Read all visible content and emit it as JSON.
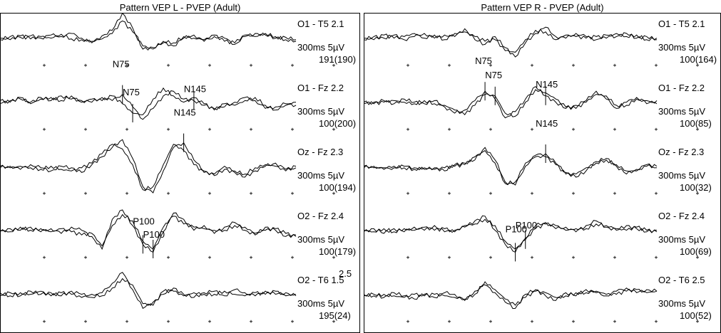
{
  "colors": {
    "trace": "#000000",
    "background": "#ffffff",
    "frame": "#000000"
  },
  "chart_data": [
    {
      "type": "line",
      "title": "Pattern VEP L  - PVEP (Adult)",
      "x_unit": "ms",
      "xlim": [
        0,
        300
      ],
      "grid": "dotted cross markers every 50 ms",
      "channels": [
        {
          "label": "O1 - T5",
          "trial_numbers": [
            "2.1"
          ],
          "scale": "300ms 5µV",
          "sweeps": "191(190)",
          "series": [
            {
              "name": "",
              "values": [
                0.0,
                0.4,
                0.3,
                0.5,
                0.2,
                0.6,
                0.4,
                0.8,
                0.2,
                -0.4,
                0.5,
                1.2,
                3.4,
                1.5,
                -1.2,
                -1.0,
                -0.4,
                -0.8,
                0.2,
                0.6,
                -0.2,
                0.4,
                0.2,
                -0.6,
                0.4,
                0.8,
                0.6,
                0.2,
                0.3,
                0.0
              ]
            },
            {
              "name": "",
              "values": [
                0.2,
                0.0,
                0.5,
                0.1,
                0.4,
                0.2,
                0.7,
                0.1,
                0.0,
                -0.2,
                0.1,
                0.8,
                2.4,
                1.0,
                -0.8,
                -1.2,
                -0.2,
                -0.4,
                0.4,
                0.2,
                0.0,
                0.6,
                -0.2,
                -0.4,
                0.6,
                0.4,
                0.8,
                0.4,
                0.0,
                -0.2
              ]
            }
          ],
          "markers": []
        },
        {
          "label": "O1 - Fz",
          "trial_numbers": [
            "2.2"
          ],
          "scale": "300ms 5µV",
          "sweeps": "100(200)",
          "series": [
            {
              "name": "",
              "values": [
                0.0,
                0.4,
                0.6,
                0.2,
                0.8,
                0.4,
                1.0,
                0.6,
                0.4,
                0.2,
                0.8,
                0.4,
                1.2,
                -0.4,
                -2.0,
                -0.6,
                1.0,
                1.6,
                0.6,
                0.4,
                -0.2,
                -0.6,
                -0.4,
                0.2,
                0.8,
                0.4,
                -0.6,
                -0.4,
                0.0,
                -0.2
              ]
            },
            {
              "name": "",
              "values": [
                0.4,
                0.2,
                0.8,
                0.0,
                0.6,
                0.8,
                0.4,
                1.0,
                0.2,
                0.6,
                0.4,
                1.0,
                0.0,
                -1.2,
                -1.4,
                0.6,
                2.0,
                1.0,
                0.2,
                0.8,
                0.0,
                -0.8,
                0.0,
                -0.2,
                0.4,
                0.8,
                -0.2,
                -0.8,
                -0.2,
                0.2
              ]
            }
          ],
          "markers": [
            {
              "label": "N75",
              "index": 12
            },
            {
              "label": "N75",
              "index": 13
            },
            {
              "label": "N145",
              "index": 19
            }
          ]
        },
        {
          "label": "Oz - Fz",
          "trial_numbers": [
            "2.3"
          ],
          "scale": "300ms 5µV",
          "sweeps": "100(194)",
          "series": [
            {
              "name": "",
              "values": [
                0.0,
                0.2,
                -0.2,
                0.4,
                0.0,
                -0.4,
                0.2,
                0.0,
                -0.6,
                0.4,
                1.4,
                2.6,
                3.6,
                1.2,
                -2.4,
                -3.2,
                -0.4,
                2.6,
                3.2,
                1.0,
                -0.4,
                -1.0,
                -0.2,
                -0.6,
                -1.2,
                -0.4,
                0.2,
                0.6,
                -0.2,
                0.0
              ]
            },
            {
              "name": "",
              "values": [
                0.2,
                0.0,
                0.2,
                0.0,
                -0.2,
                0.2,
                -0.2,
                -0.4,
                0.0,
                0.6,
                1.8,
                3.0,
                2.4,
                0.4,
                -2.8,
                -2.4,
                0.4,
                3.0,
                2.2,
                0.4,
                -0.6,
                -0.8,
                0.2,
                -0.4,
                -0.8,
                0.0,
                0.4,
                0.2,
                -0.4,
                0.2
              ]
            }
          ],
          "markers": [
            {
              "label": "N145",
              "index": 18
            }
          ]
        },
        {
          "label": "O2 - Fz",
          "trial_numbers": [
            "2.4"
          ],
          "scale": "300ms 5µV",
          "sweeps": "100(179)",
          "series": [
            {
              "name": "",
              "values": [
                0.0,
                0.4,
                0.2,
                0.6,
                0.0,
                0.4,
                -0.2,
                0.6,
                0.2,
                -0.6,
                -2.2,
                1.6,
                2.8,
                0.8,
                -1.6,
                -2.6,
                0.0,
                2.4,
                1.6,
                0.2,
                0.8,
                -0.2,
                0.6,
                1.2,
                0.2,
                -0.4,
                0.6,
                0.2,
                -0.6,
                -0.4
              ]
            },
            {
              "name": "",
              "values": [
                0.2,
                0.0,
                0.6,
                0.2,
                0.4,
                0.0,
                0.4,
                0.0,
                -0.4,
                -0.2,
                -1.8,
                0.8,
                2.2,
                1.4,
                -1.2,
                -2.2,
                0.6,
                2.0,
                1.0,
                0.6,
                0.4,
                0.2,
                0.2,
                0.8,
                0.6,
                -0.2,
                0.2,
                0.4,
                -0.2,
                -0.6
              ]
            }
          ],
          "markers": [
            {
              "label": "P100",
              "index": 14
            },
            {
              "label": "P100",
              "index": 15
            }
          ]
        },
        {
          "label": "O2 - T6",
          "trial_numbers": [
            "1.5",
            "2.5"
          ],
          "scale": "300ms 5µV",
          "sweeps": "195(24)",
          "series": [
            {
              "name": "",
              "values": [
                0.0,
                0.4,
                0.0,
                0.6,
                0.2,
                0.4,
                0.0,
                0.6,
                0.2,
                -0.2,
                0.4,
                1.6,
                3.0,
                0.8,
                -1.6,
                -0.8,
                0.2,
                1.0,
                0.2,
                -0.2,
                0.4,
                0.6,
                0.0,
                0.8,
                0.4,
                0.0,
                0.6,
                0.2,
                0.4,
                0.0
              ]
            },
            {
              "name": "",
              "values": [
                0.4,
                0.0,
                0.4,
                0.2,
                0.6,
                0.0,
                0.4,
                0.2,
                -0.2,
                0.2,
                0.0,
                1.0,
                2.2,
                1.4,
                -1.0,
                -1.2,
                0.6,
                0.6,
                0.0,
                0.4,
                0.2,
                0.2,
                0.6,
                0.2,
                0.0,
                0.4,
                0.2,
                0.6,
                0.0,
                0.2
              ]
            }
          ],
          "markers": []
        }
      ]
    },
    {
      "type": "line",
      "title": "Pattern VEP R  - PVEP (Adult)",
      "x_unit": "ms",
      "xlim": [
        0,
        300
      ],
      "grid": "dotted cross markers every 50 ms",
      "channels": [
        {
          "label": "O1 - T5",
          "trial_numbers": [
            "2.1"
          ],
          "scale": "300ms 5µV",
          "sweeps": "100(164)",
          "series": [
            {
              "name": "",
              "values": [
                0.0,
                0.4,
                0.2,
                0.6,
                0.0,
                0.4,
                0.8,
                0.2,
                0.6,
                0.4,
                1.4,
                0.0,
                -0.6,
                0.4,
                -1.0,
                -2.2,
                -0.4,
                0.8,
                1.6,
                0.4,
                0.2,
                0.8,
                0.4,
                0.0,
                0.6,
                0.4,
                0.8,
                0.2,
                0.4,
                0.0
              ]
            },
            {
              "name": "",
              "values": [
                0.2,
                0.0,
                0.6,
                0.2,
                0.4,
                0.8,
                0.2,
                0.6,
                0.0,
                0.8,
                1.0,
                0.4,
                -0.2,
                0.0,
                -1.4,
                -1.6,
                0.0,
                1.2,
                1.0,
                0.0,
                0.6,
                0.4,
                0.2,
                0.4,
                0.2,
                0.8,
                0.4,
                0.6,
                0.0,
                0.2
              ]
            }
          ],
          "markers": []
        },
        {
          "label": "O1 - Fz",
          "trial_numbers": [
            "2.2"
          ],
          "scale": "300ms 5µV",
          "sweeps": "100(85)",
          "series": [
            {
              "name": "",
              "values": [
                0.0,
                0.2,
                0.4,
                0.0,
                0.6,
                0.2,
                0.0,
                0.4,
                -0.4,
                -1.2,
                -0.8,
                0.4,
                1.6,
                0.6,
                -1.8,
                -1.0,
                0.6,
                2.2,
                1.0,
                0.2,
                -0.6,
                -0.2,
                0.4,
                1.6,
                0.6,
                -0.6,
                0.2,
                0.8,
                0.0,
                0.4
              ]
            },
            {
              "name": "",
              "values": [
                0.2,
                0.0,
                0.2,
                0.4,
                0.2,
                0.0,
                0.4,
                0.0,
                -0.2,
                -0.8,
                -1.4,
                -0.2,
                1.2,
                1.0,
                -1.2,
                -1.6,
                0.2,
                1.8,
                1.4,
                0.6,
                -0.4,
                -0.6,
                0.2,
                1.2,
                1.0,
                -0.2,
                -0.2,
                0.6,
                0.4,
                0.0
              ]
            }
          ],
          "markers": [
            {
              "label": "N75",
              "index": 12
            },
            {
              "label": "N75",
              "index": 13
            },
            {
              "label": "N145",
              "index": 18
            }
          ]
        },
        {
          "label": "Oz - Fz",
          "trial_numbers": [
            "2.3"
          ],
          "scale": "300ms 5µV",
          "sweeps": "100(32)",
          "series": [
            {
              "name": "",
              "values": [
                0.0,
                0.2,
                -0.2,
                0.0,
                0.2,
                0.0,
                -0.2,
                0.0,
                -0.4,
                0.4,
                0.6,
                1.0,
                2.6,
                1.0,
                -1.8,
                -2.2,
                0.2,
                1.6,
                1.8,
                0.6,
                -0.6,
                -1.2,
                -0.4,
                0.8,
                1.2,
                0.2,
                -0.8,
                -0.2,
                0.4,
                0.0
              ]
            },
            {
              "name": "",
              "values": [
                0.2,
                0.0,
                0.0,
                0.2,
                0.0,
                -0.2,
                0.0,
                -0.2,
                0.0,
                0.2,
                0.4,
                1.4,
                2.2,
                0.6,
                -2.0,
                -1.8,
                0.6,
                1.4,
                1.4,
                0.4,
                -0.8,
                -0.8,
                0.0,
                0.6,
                1.0,
                0.4,
                -0.4,
                -0.4,
                0.2,
                0.2
              ]
            }
          ],
          "markers": [
            {
              "label": "N145",
              "index": 18
            }
          ]
        },
        {
          "label": "O2 - Fz",
          "trial_numbers": [
            "2.4"
          ],
          "scale": "300ms 5µV",
          "sweeps": "100(69)",
          "series": [
            {
              "name": "",
              "values": [
                0.0,
                0.4,
                -0.2,
                0.4,
                0.0,
                0.6,
                0.2,
                0.8,
                0.0,
                0.2,
                0.6,
                1.4,
                2.0,
                0.2,
                -1.6,
                -2.6,
                -0.8,
                0.8,
                1.2,
                0.4,
                0.6,
                0.0,
                0.8,
                1.4,
                0.6,
                0.2,
                0.8,
                0.4,
                0.0,
                0.2
              ]
            },
            {
              "name": "",
              "values": [
                0.2,
                0.0,
                0.4,
                0.0,
                0.4,
                0.2,
                0.6,
                0.2,
                0.4,
                0.0,
                0.8,
                1.0,
                1.6,
                0.8,
                -1.2,
                -2.2,
                -1.0,
                0.4,
                1.0,
                0.8,
                0.2,
                0.4,
                0.4,
                1.0,
                0.8,
                0.4,
                0.2,
                0.6,
                0.2,
                0.0
              ]
            }
          ],
          "markers": [
            {
              "label": "P100",
              "index": 15
            },
            {
              "label": "P100",
              "index": 16
            }
          ]
        },
        {
          "label": "O2 - T6",
          "trial_numbers": [
            "2.5"
          ],
          "scale": "300ms 5µV",
          "sweeps": "100(52)",
          "series": [
            {
              "name": "",
              "values": [
                0.0,
                0.2,
                -0.2,
                0.4,
                0.0,
                -0.4,
                0.2,
                -0.2,
                0.4,
                0.2,
                -0.6,
                0.6,
                1.4,
                0.4,
                -0.8,
                -1.6,
                0.2,
                0.8,
                0.0,
                -0.6,
                0.4,
                0.0,
                0.8,
                0.4,
                0.0,
                0.6,
                1.0,
                0.4,
                0.8,
                0.6
              ]
            },
            {
              "name": "",
              "values": [
                0.2,
                0.0,
                0.2,
                0.0,
                -0.2,
                0.2,
                0.0,
                0.2,
                0.0,
                -0.2,
                -0.4,
                0.2,
                1.8,
                0.8,
                -0.4,
                -1.2,
                -0.2,
                0.6,
                0.4,
                -0.2,
                0.0,
                0.4,
                0.4,
                0.6,
                0.2,
                0.2,
                0.6,
                0.8,
                0.4,
                0.6
              ]
            }
          ],
          "markers": []
        }
      ]
    }
  ]
}
